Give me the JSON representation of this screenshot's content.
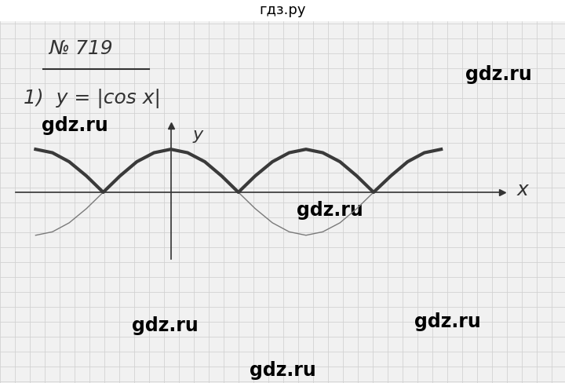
{
  "page": {
    "header": "гдз.ру",
    "problem": "№ 719",
    "item": "1)  y = |cos x|",
    "watermarks": [
      "gdz.ru",
      "gdz.ru",
      "gdz.ru",
      "gdz.ru",
      "gdz.ru",
      "gdz.ru"
    ]
  },
  "chart_data": {
    "type": "line",
    "x": [
      -3.14,
      -2.75,
      -2.36,
      -1.96,
      -1.57,
      -1.18,
      -0.79,
      -0.39,
      0,
      0.39,
      0.79,
      1.18,
      1.57,
      1.96,
      2.36,
      2.75,
      3.14,
      3.53,
      3.93,
      4.32,
      4.71,
      5.11,
      5.5,
      5.89,
      6.28
    ],
    "series": [
      {
        "color": "#7a7a7a",
        "line_style": "solid",
        "values": [
          -1,
          -0.92,
          -0.71,
          -0.38,
          0,
          0.38,
          0.71,
          0.92,
          1,
          0.92,
          0.71,
          0.38,
          0,
          -0.38,
          -0.71,
          -0.92,
          -1,
          -0.92,
          -0.71,
          -0.38,
          0,
          0.38,
          0.71,
          0.92,
          1
        ]
      },
      {
        "color": "#3a3a3a",
        "line_style": "solid",
        "values": [
          1,
          0.92,
          0.71,
          0.38,
          0,
          0.38,
          0.71,
          0.92,
          1,
          0.92,
          0.71,
          0.38,
          0,
          0.38,
          0.71,
          0.92,
          1,
          0.92,
          0.71,
          0.38,
          0,
          0.38,
          0.71,
          0.92,
          1
        ]
      }
    ],
    "xlim": [
      -3.6,
      7.7
    ],
    "ylim": [
      -1.55,
      1.55
    ],
    "xticks": [],
    "yticks": [],
    "tick_labels": false,
    "x_label": "x",
    "y_label": "y"
  }
}
